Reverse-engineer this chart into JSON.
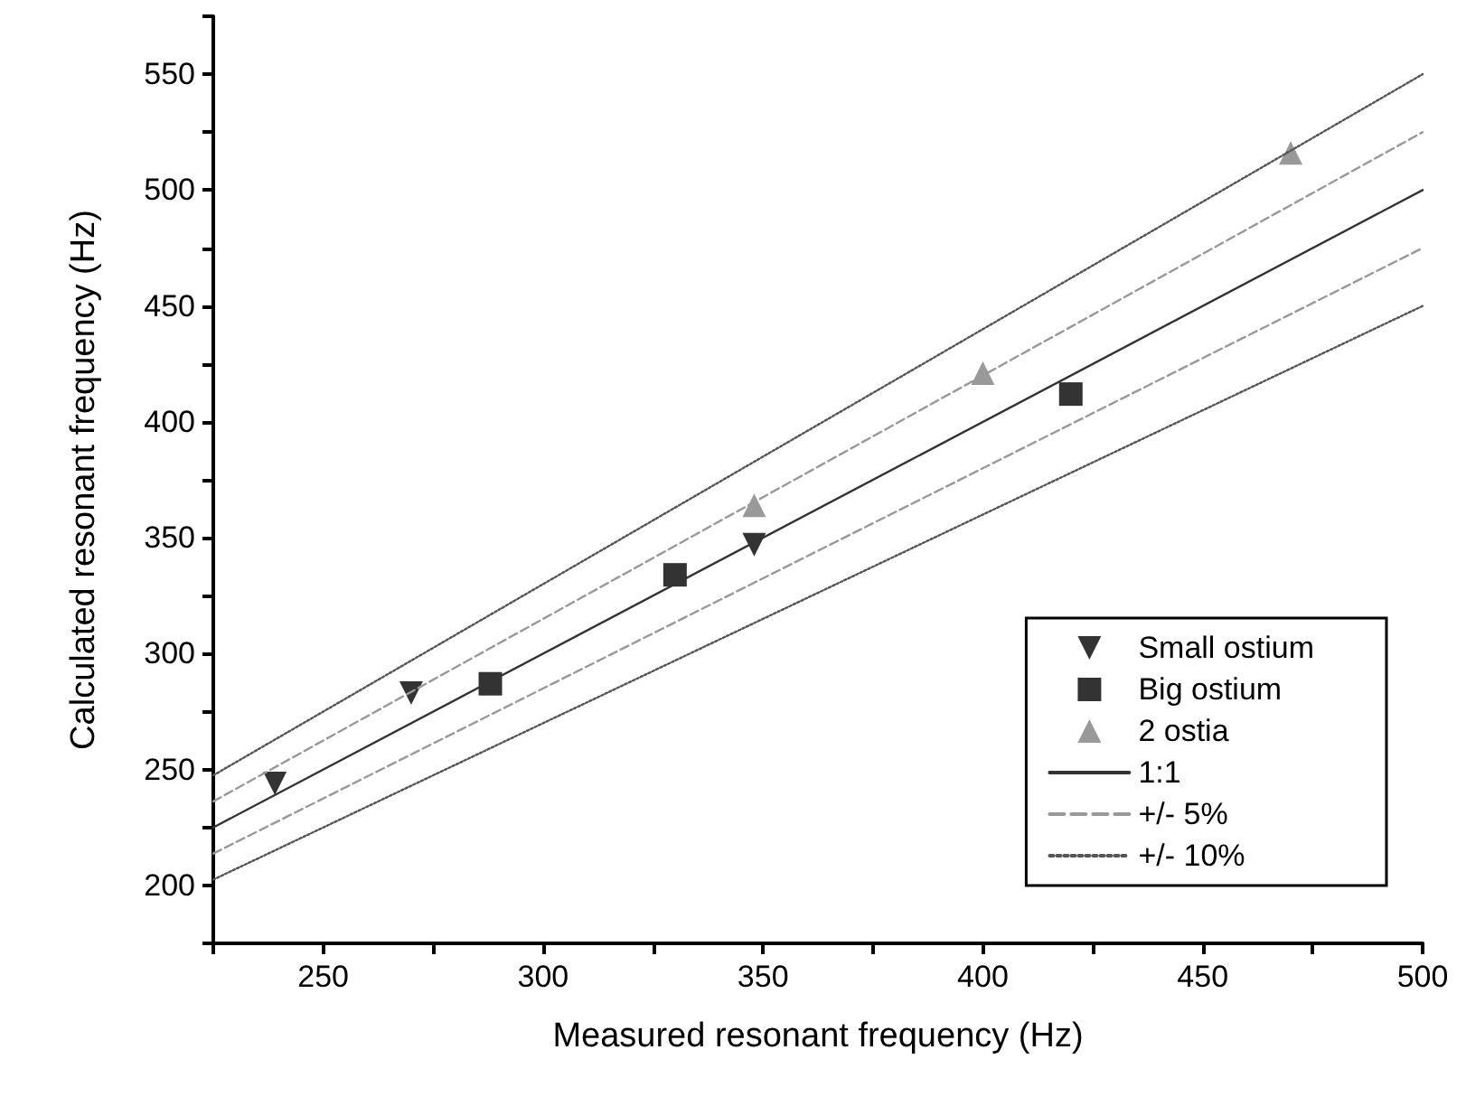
{
  "chart_data": {
    "type": "scatter",
    "xlabel": "Measured resonant frequency (Hz)",
    "ylabel": "Calculated resonant frequency (Hz)",
    "xlim": [
      225,
      500
    ],
    "xticks": [
      {
        "value": 225,
        "label": null
      },
      250,
      {
        "value": 275,
        "label": null
      },
      300,
      {
        "value": 325,
        "label": null
      },
      350,
      {
        "value": 375,
        "label": null
      },
      400,
      {
        "value": 425,
        "label": null
      },
      450,
      {
        "value": 475,
        "label": null
      },
      500
    ],
    "ylim": [
      175,
      575
    ],
    "yticks": [
      {
        "value": 175,
        "label": null
      },
      200,
      {
        "value": 225,
        "label": null
      },
      250,
      {
        "value": 275,
        "label": null
      },
      300,
      {
        "value": 325,
        "label": null
      },
      350,
      {
        "value": 375,
        "label": null
      },
      400,
      {
        "value": 425,
        "label": null
      },
      450,
      {
        "value": 475,
        "label": null
      },
      500,
      {
        "value": 525,
        "label": null
      },
      550,
      {
        "value": 575,
        "label": null
      }
    ],
    "grid": false,
    "legend": "bottom right",
    "series": [
      {
        "name": "Small ostium",
        "marker": "triangle-down",
        "color": "#000000",
        "x": [
          239,
          270,
          348
        ],
        "values": [
          244,
          283,
          347
        ]
      },
      {
        "name": "Big ostium",
        "marker": "square",
        "color": "#000000",
        "x": [
          288,
          330,
          420
        ],
        "values": [
          287,
          334,
          412
        ]
      },
      {
        "name": "2 ostia",
        "marker": "triangle",
        "color": "#808080",
        "x": [
          348,
          400,
          470
        ],
        "values": [
          364,
          421,
          516
        ]
      },
      {
        "name": "1:1",
        "type": "line",
        "marker": "none",
        "line_style": "solid",
        "color": "#333333",
        "x": [
          225,
          500
        ],
        "values": [
          225,
          500
        ]
      },
      {
        "name": "+/- 5%",
        "type": "line",
        "marker": "none",
        "line_style": "dashed",
        "color": "#999999",
        "x": [
          225,
          500
        ],
        "values": [
          236.25,
          525
        ]
      },
      {
        "type": "line",
        "marker": "none",
        "line_style": "dashed",
        "color": "#999999",
        "x": [
          225,
          500
        ],
        "values": [
          213.75,
          475
        ]
      },
      {
        "name": "+/- 10%",
        "type": "line",
        "marker": "none",
        "line_style": "dotted",
        "color": "#555555",
        "x": [
          225,
          500
        ],
        "values": [
          247.5,
          550
        ]
      },
      {
        "type": "line",
        "marker": "none",
        "line_style": "dotted",
        "color": "#555555",
        "x": [
          225,
          500
        ],
        "values": [
          202.5,
          450
        ]
      }
    ]
  }
}
